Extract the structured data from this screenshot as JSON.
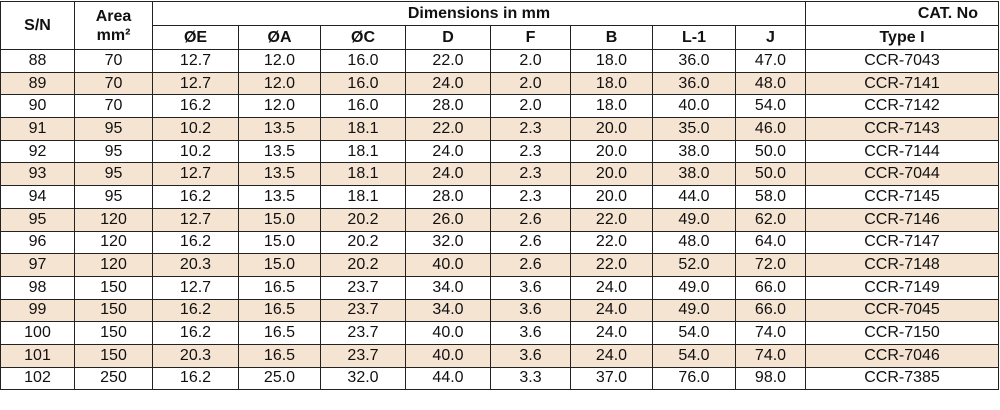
{
  "table": {
    "header": {
      "sn": "S/N",
      "area": "Area",
      "area_unit": "mm²",
      "group": "Dimensions in mm",
      "cat": "CAT. No",
      "columns": [
        "ØE",
        "ØA",
        "ØC",
        "D",
        "F",
        "B",
        "L-1",
        "J"
      ],
      "type": "Type I"
    },
    "rows": [
      [
        "88",
        "70",
        "12.7",
        "12.0",
        "16.0",
        "22.0",
        "2.0",
        "18.0",
        "36.0",
        "47.0",
        "CCR-7043"
      ],
      [
        "89",
        "70",
        "12.7",
        "12.0",
        "16.0",
        "24.0",
        "2.0",
        "18.0",
        "36.0",
        "48.0",
        "CCR-7141"
      ],
      [
        "90",
        "70",
        "16.2",
        "12.0",
        "16.0",
        "28.0",
        "2.0",
        "18.0",
        "40.0",
        "54.0",
        "CCR-7142"
      ],
      [
        "91",
        "95",
        "10.2",
        "13.5",
        "18.1",
        "22.0",
        "2.3",
        "20.0",
        "35.0",
        "46.0",
        "CCR-7143"
      ],
      [
        "92",
        "95",
        "10.2",
        "13.5",
        "18.1",
        "24.0",
        "2.3",
        "20.0",
        "38.0",
        "50.0",
        "CCR-7144"
      ],
      [
        "93",
        "95",
        "12.7",
        "13.5",
        "18.1",
        "24.0",
        "2.3",
        "20.0",
        "38.0",
        "50.0",
        "CCR-7044"
      ],
      [
        "94",
        "95",
        "16.2",
        "13.5",
        "18.1",
        "28.0",
        "2.3",
        "20.0",
        "44.0",
        "58.0",
        "CCR-7145"
      ],
      [
        "95",
        "120",
        "12.7",
        "15.0",
        "20.2",
        "26.0",
        "2.6",
        "22.0",
        "49.0",
        "62.0",
        "CCR-7146"
      ],
      [
        "96",
        "120",
        "16.2",
        "15.0",
        "20.2",
        "32.0",
        "2.6",
        "22.0",
        "48.0",
        "64.0",
        "CCR-7147"
      ],
      [
        "97",
        "120",
        "20.3",
        "15.0",
        "20.2",
        "40.0",
        "2.6",
        "22.0",
        "52.0",
        "72.0",
        "CCR-7148"
      ],
      [
        "98",
        "150",
        "12.7",
        "16.5",
        "23.7",
        "34.0",
        "3.6",
        "24.0",
        "49.0",
        "66.0",
        "CCR-7149"
      ],
      [
        "99",
        "150",
        "16.2",
        "16.5",
        "23.7",
        "34.0",
        "3.6",
        "24.0",
        "49.0",
        "66.0",
        "CCR-7045"
      ],
      [
        "100",
        "150",
        "16.2",
        "16.5",
        "23.7",
        "40.0",
        "3.6",
        "24.0",
        "54.0",
        "74.0",
        "CCR-7150"
      ],
      [
        "101",
        "150",
        "20.3",
        "16.5",
        "23.7",
        "40.0",
        "3.6",
        "24.0",
        "54.0",
        "74.0",
        "CCR-7046"
      ],
      [
        "102",
        "250",
        "16.2",
        "25.0",
        "32.0",
        "44.0",
        "3.3",
        "37.0",
        "76.0",
        "98.0",
        "CCR-7385"
      ]
    ]
  }
}
